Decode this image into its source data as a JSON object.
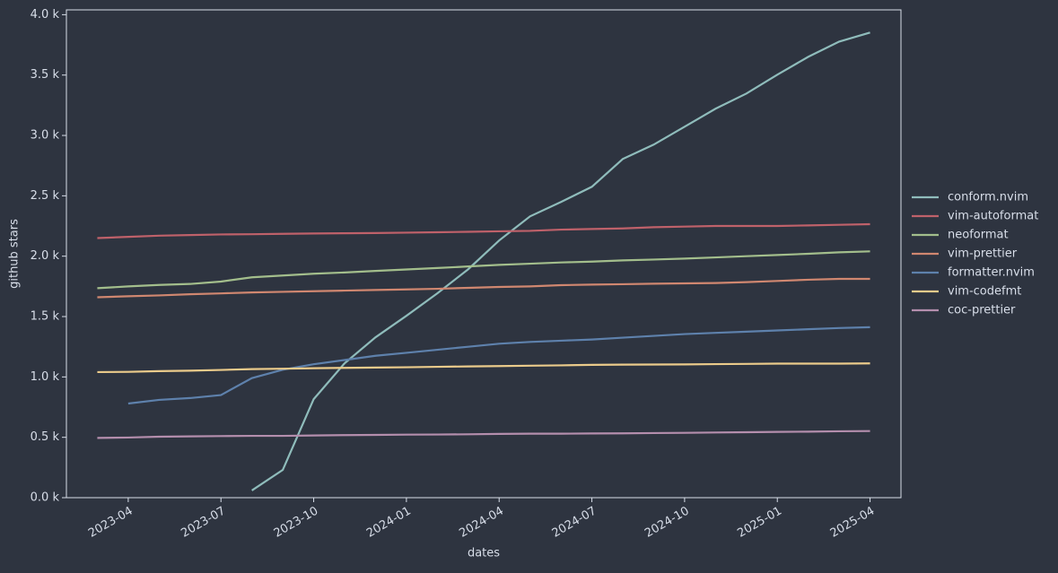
{
  "chart_data": {
    "type": "line",
    "xlabel": "dates",
    "ylabel": "github stars",
    "x": [
      "2023-03",
      "2023-04",
      "2023-05",
      "2023-06",
      "2023-07",
      "2023-08",
      "2023-09",
      "2023-10",
      "2023-11",
      "2023-12",
      "2024-01",
      "2024-02",
      "2024-03",
      "2024-04",
      "2024-05",
      "2024-06",
      "2024-07",
      "2024-08",
      "2024-09",
      "2024-10",
      "2024-11",
      "2024-12",
      "2025-01",
      "2025-02",
      "2025-03",
      "2025-04"
    ],
    "xlim": [
      "2023-02",
      "2025-05"
    ],
    "xticks": [
      "2023-04",
      "2023-07",
      "2023-10",
      "2024-01",
      "2024-04",
      "2024-07",
      "2024-10",
      "2025-01",
      "2025-04"
    ],
    "ylim": [
      0,
      4040
    ],
    "yticks": [
      {
        "value": 0,
        "label": "0.0 k"
      },
      {
        "value": 500,
        "label": "0.5 k"
      },
      {
        "value": 1000,
        "label": "1.0 k"
      },
      {
        "value": 1500,
        "label": "1.5 k"
      },
      {
        "value": 2000,
        "label": "2.0 k"
      },
      {
        "value": 2500,
        "label": "2.5 k"
      },
      {
        "value": 3000,
        "label": "3.0 k"
      },
      {
        "value": 3500,
        "label": "3.5 k"
      },
      {
        "value": 4000,
        "label": "4.0 k"
      }
    ],
    "legend": "center right",
    "series": [
      {
        "name": "conform.nvim",
        "color": "#8fbcbb",
        "values": [
          null,
          null,
          null,
          null,
          null,
          60,
          230,
          816,
          1113,
          1328,
          1506,
          1692,
          1892,
          2130,
          2330,
          2449,
          2575,
          2805,
          2924,
          3072,
          3221,
          3347,
          3503,
          3651,
          3777,
          3852
        ]
      },
      {
        "name": "vim-autoformat",
        "color": "#bf616a",
        "values": [
          2150,
          2160,
          2170,
          2175,
          2180,
          2182,
          2185,
          2188,
          2190,
          2192,
          2195,
          2198,
          2202,
          2206,
          2210,
          2220,
          2225,
          2230,
          2240,
          2245,
          2250,
          2250,
          2250,
          2255,
          2260,
          2265
        ]
      },
      {
        "name": "neoformat",
        "color": "#a3be8c",
        "values": [
          1735,
          1750,
          1762,
          1770,
          1790,
          1825,
          1840,
          1855,
          1865,
          1878,
          1890,
          1902,
          1915,
          1928,
          1938,
          1948,
          1955,
          1965,
          1972,
          1980,
          1990,
          2000,
          2010,
          2020,
          2032,
          2040
        ]
      },
      {
        "name": "vim-prettier",
        "color": "#d08770",
        "values": [
          1660,
          1668,
          1675,
          1685,
          1692,
          1700,
          1705,
          1710,
          1715,
          1720,
          1725,
          1730,
          1738,
          1745,
          1750,
          1760,
          1765,
          1768,
          1772,
          1775,
          1778,
          1785,
          1795,
          1805,
          1812,
          1812
        ]
      },
      {
        "name": "formatter.nvim",
        "color": "#5e81ac",
        "values": [
          null,
          780,
          810,
          825,
          850,
          990,
          1060,
          1105,
          1140,
          1175,
          1200,
          1225,
          1250,
          1275,
          1290,
          1300,
          1310,
          1325,
          1340,
          1355,
          1365,
          1375,
          1385,
          1395,
          1405,
          1412
        ]
      },
      {
        "name": "vim-codefmt",
        "color": "#ebcb8b",
        "values": [
          1040,
          1042,
          1048,
          1052,
          1058,
          1065,
          1068,
          1072,
          1075,
          1078,
          1080,
          1084,
          1087,
          1090,
          1093,
          1096,
          1100,
          1102,
          1103,
          1104,
          1106,
          1108,
          1110,
          1110,
          1110,
          1112
        ]
      },
      {
        "name": "coc-prettier",
        "color": "#b48ead",
        "values": [
          495,
          498,
          505,
          508,
          510,
          512,
          512,
          515,
          518,
          520,
          522,
          523,
          525,
          528,
          530,
          530,
          532,
          533,
          535,
          537,
          540,
          542,
          545,
          547,
          550,
          552
        ]
      }
    ]
  }
}
